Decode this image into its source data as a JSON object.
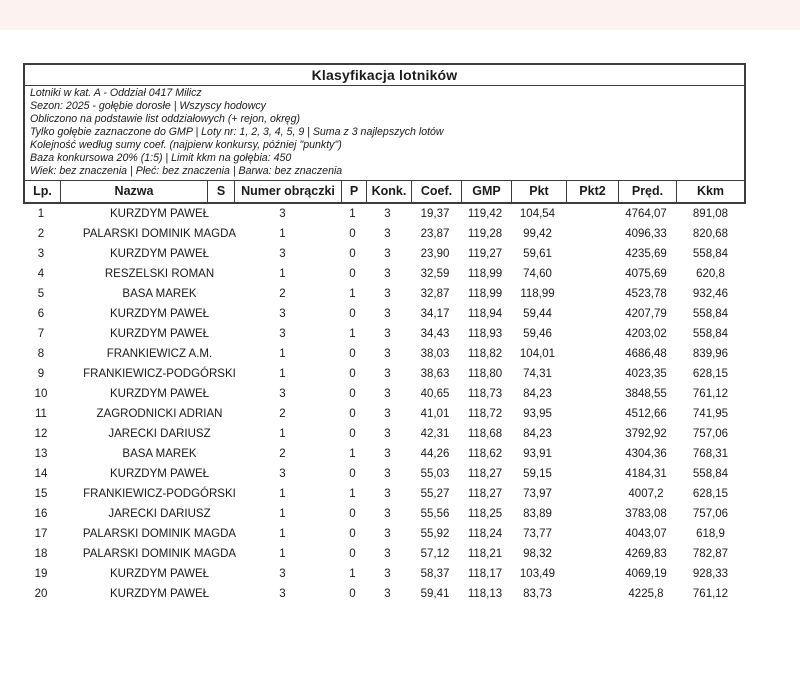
{
  "report": {
    "title": "Klasyfikacja lotników",
    "info_lines": [
      "Lotniki w kat. A - Oddział 0417 Milicz",
      "Sezon: 2025 - gołębie dorosłe  |  Wszyscy hodowcy",
      "Obliczono na podstawie list oddziałowych (+ rejon, okręg)",
      "Tylko gołębie zaznaczone do GMP  |  Loty nr: 1, 2, 3, 4, 5, 9  |  Suma z 3 najlepszych lotów",
      "Kolejność według sumy coef. (najpierw konkursy, później \"punkty\")",
      "Baza konkursowa 20% (1:5) | Limit kkm na gołębia: 450",
      "Wiek: bez znaczenia  |  Płeć: bez znaczenia  |  Barwa: bez znaczenia"
    ]
  },
  "table": {
    "columns": [
      "Lp.",
      "Nazwa",
      "S",
      "Numer obrączki",
      "P",
      "Konk.",
      "Coef.",
      "GMP",
      "Pkt",
      "Pkt2",
      "Pręd.",
      "Kkm"
    ],
    "rows": [
      [
        "1",
        "KURZDYM PAWEŁ",
        "3",
        "",
        "1",
        "3",
        "19,37",
        "119,42",
        "104,54",
        "",
        "4764,07",
        "891,08"
      ],
      [
        "2",
        "PALARSKI DOMINIK MAGDA",
        "1",
        "",
        "0",
        "3",
        "23,87",
        "119,28",
        "99,42",
        "",
        "4096,33",
        "820,68"
      ],
      [
        "3",
        "KURZDYM PAWEŁ",
        "3",
        "",
        "0",
        "3",
        "23,90",
        "119,27",
        "59,61",
        "",
        "4235,69",
        "558,84"
      ],
      [
        "4",
        "RESZELSKI ROMAN",
        "1",
        "",
        "0",
        "3",
        "32,59",
        "118,99",
        "74,60",
        "",
        "4075,69",
        "620,8"
      ],
      [
        "5",
        "BASA MAREK",
        "2",
        "",
        "1",
        "3",
        "32,87",
        "118,99",
        "118,99",
        "",
        "4523,78",
        "932,46"
      ],
      [
        "6",
        "KURZDYM PAWEŁ",
        "3",
        "",
        "0",
        "3",
        "34,17",
        "118,94",
        "59,44",
        "",
        "4207,79",
        "558,84"
      ],
      [
        "7",
        "KURZDYM PAWEŁ",
        "3",
        "",
        "1",
        "3",
        "34,43",
        "118,93",
        "59,46",
        "",
        "4203,02",
        "558,84"
      ],
      [
        "8",
        "FRANKIEWICZ A.M.",
        "1",
        "",
        "0",
        "3",
        "38,03",
        "118,82",
        "104,01",
        "",
        "4686,48",
        "839,96"
      ],
      [
        "9",
        "FRANKIEWICZ-PODGÓRSKI",
        "1",
        "",
        "0",
        "3",
        "38,63",
        "118,80",
        "74,31",
        "",
        "4023,35",
        "628,15"
      ],
      [
        "10",
        "KURZDYM PAWEŁ",
        "3",
        "",
        "0",
        "3",
        "40,65",
        "118,73",
        "84,23",
        "",
        "3848,55",
        "761,12"
      ],
      [
        "11",
        "ZAGRODNICKI ADRIAN",
        "2",
        "",
        "0",
        "3",
        "41,01",
        "118,72",
        "93,95",
        "",
        "4512,66",
        "741,95"
      ],
      [
        "12",
        "JARECKI DARIUSZ",
        "1",
        "",
        "0",
        "3",
        "42,31",
        "118,68",
        "84,23",
        "",
        "3792,92",
        "757,06"
      ],
      [
        "13",
        "BASA MAREK",
        "2",
        "",
        "1",
        "3",
        "44,26",
        "118,62",
        "93,91",
        "",
        "4304,36",
        "768,31"
      ],
      [
        "14",
        "KURZDYM PAWEŁ",
        "3",
        "",
        "0",
        "3",
        "55,03",
        "118,27",
        "59,15",
        "",
        "4184,31",
        "558,84"
      ],
      [
        "15",
        "FRANKIEWICZ-PODGÓRSKI",
        "1",
        "",
        "1",
        "3",
        "55,27",
        "118,27",
        "73,97",
        "",
        "4007,2",
        "628,15"
      ],
      [
        "16",
        "JARECKI DARIUSZ",
        "1",
        "",
        "0",
        "3",
        "55,56",
        "118,25",
        "83,89",
        "",
        "3783,08",
        "757,06"
      ],
      [
        "17",
        "PALARSKI DOMINIK MAGDA",
        "1",
        "",
        "0",
        "3",
        "55,92",
        "118,24",
        "73,77",
        "",
        "4043,07",
        "618,9"
      ],
      [
        "18",
        "PALARSKI DOMINIK MAGDA",
        "1",
        "",
        "0",
        "3",
        "57,12",
        "118,21",
        "98,32",
        "",
        "4269,83",
        "782,87"
      ],
      [
        "19",
        "KURZDYM PAWEŁ",
        "3",
        "",
        "1",
        "3",
        "58,37",
        "118,17",
        "103,49",
        "",
        "4069,19",
        "928,33"
      ],
      [
        "20",
        "KURZDYM PAWEŁ",
        "3",
        "",
        "0",
        "3",
        "59,41",
        "118,13",
        "83,73",
        "",
        "4225,8",
        "761,12"
      ]
    ]
  },
  "colors": {
    "page_bg": "#ffffff",
    "top_strip": "#fcf2ef",
    "border": "#3c3c3c",
    "text": "#1b1b1b"
  }
}
